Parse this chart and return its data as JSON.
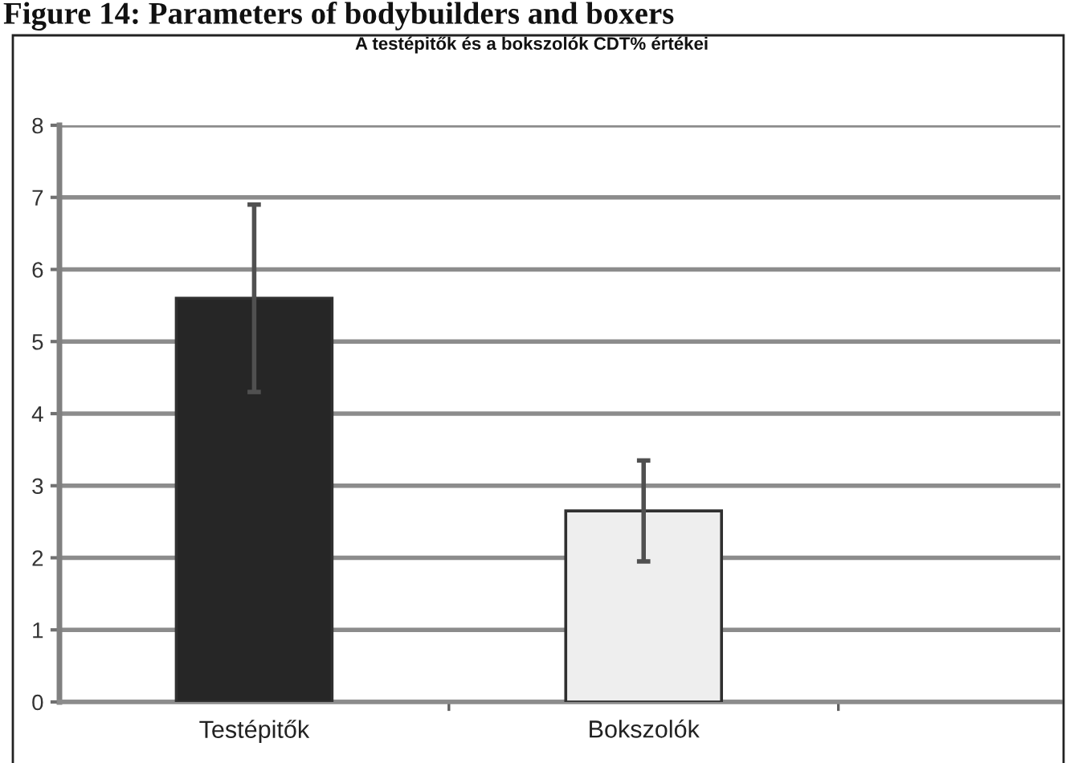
{
  "chart_data": {
    "type": "bar",
    "title": "A testépitők és a bokszolók CDT% értékei",
    "annotations": [
      "Figure 14: Parameters of bodybuilders and boxers"
    ],
    "categories": [
      "Testépitők",
      "Bokszolók"
    ],
    "values": [
      5.6,
      2.65
    ],
    "colors": [
      "#262626",
      "#eeeeee"
    ],
    "errors": [
      1.3,
      0.7
    ],
    "ylim": [
      0,
      8
    ],
    "yticks": [
      0,
      1,
      2,
      3,
      4,
      5,
      6,
      7,
      8
    ],
    "grid": "y"
  }
}
